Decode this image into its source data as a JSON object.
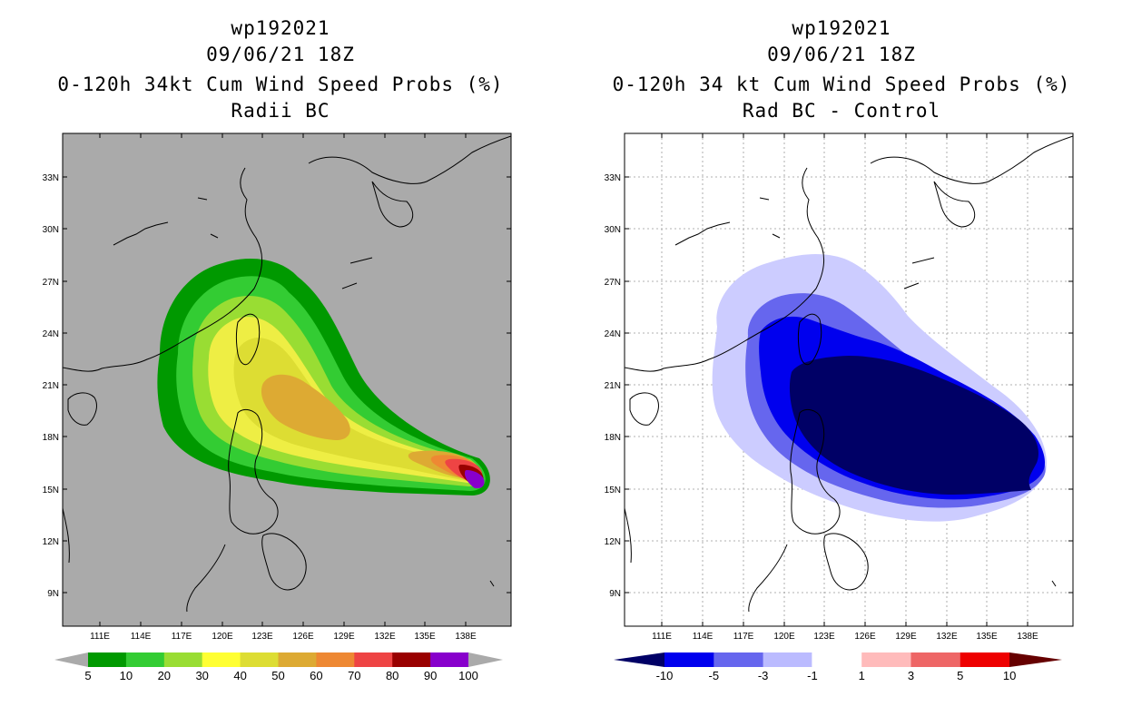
{
  "left_panel": {
    "title_lines": [
      "wp192021",
      "09/06/21 18Z",
      "0-120h 34kt Cum Wind Speed Probs (%)",
      "Radii BC"
    ],
    "background": "#aaaaaa",
    "colorbar": {
      "colors": [
        "#009900",
        "#33cc33",
        "#99dd33",
        "#ffff33",
        "#dddd33",
        "#ddaa33",
        "#ee8833",
        "#ee4444",
        "#990000",
        "#8800cc"
      ],
      "labels": [
        "5",
        "10",
        "20",
        "30",
        "40",
        "50",
        "60",
        "70",
        "80",
        "90",
        "100"
      ]
    }
  },
  "right_panel": {
    "title_lines": [
      "wp192021",
      "09/06/21 18Z",
      "0-120h 34 kt Cum Wind Speed Probs (%)",
      "Rad BC - Control"
    ],
    "background": "#ffffff",
    "colorbar": {
      "colors": [
        "#000066",
        "#0000ee",
        "#6666ee",
        "#bbbbff",
        "#ffffff",
        "#ffbbbb",
        "#ee6666",
        "#ee0000",
        "#660000"
      ],
      "labels": [
        "-10",
        "-5",
        "-3",
        "-1",
        "1",
        "3",
        "5",
        "10"
      ]
    }
  },
  "axes": {
    "lat_labels": [
      "33N",
      "30N",
      "27N",
      "24N",
      "21N",
      "18N",
      "15N",
      "12N",
      "9N"
    ],
    "lon_labels": [
      "111E",
      "114E",
      "117E",
      "120E",
      "123E",
      "126E",
      "129E",
      "132E",
      "135E",
      "138E"
    ]
  }
}
